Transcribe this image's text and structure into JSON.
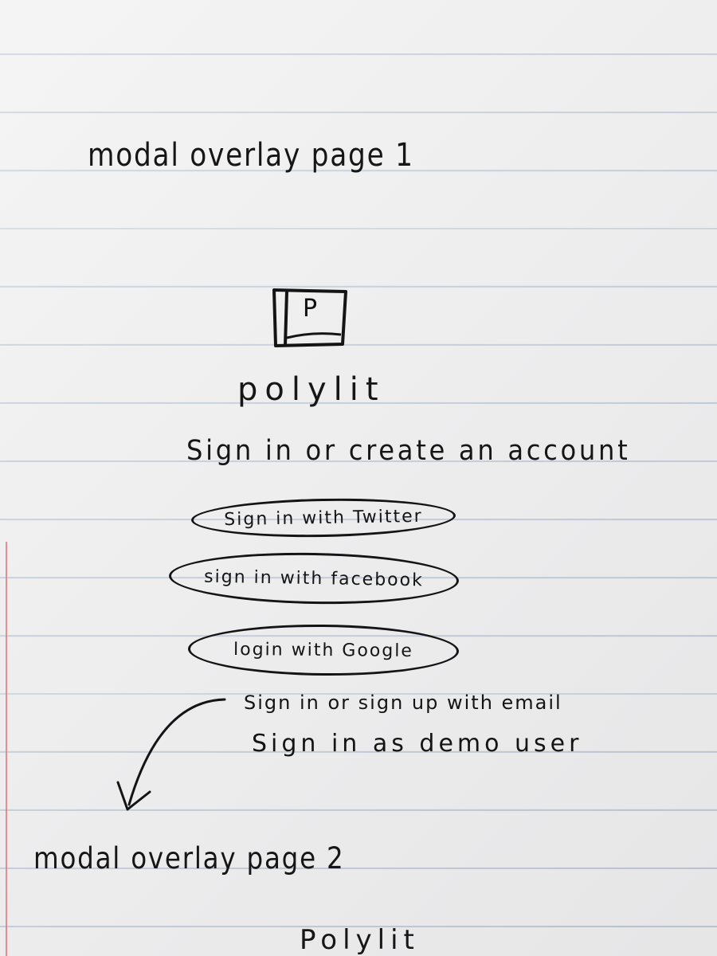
{
  "sketch": {
    "page1_title": "modal overlay page 1",
    "logo": {
      "letter": "P",
      "icon": "square-logo-icon"
    },
    "brand_name": "polylit",
    "subtitle": "Sign in or create an account",
    "buttons": {
      "twitter": "Sign in with Twitter",
      "facebook": "sign in with facebook",
      "google": "login with Google"
    },
    "links": {
      "email": "Sign in or sign up with email",
      "demo": "Sign in as demo user"
    },
    "page2_title": "modal overlay page 2",
    "page2_brand": "Polylit"
  },
  "colors": {
    "ink": "#141414",
    "paper": "#efeff0",
    "rule_line": "#96aac3",
    "margin_line": "#e16e78"
  }
}
